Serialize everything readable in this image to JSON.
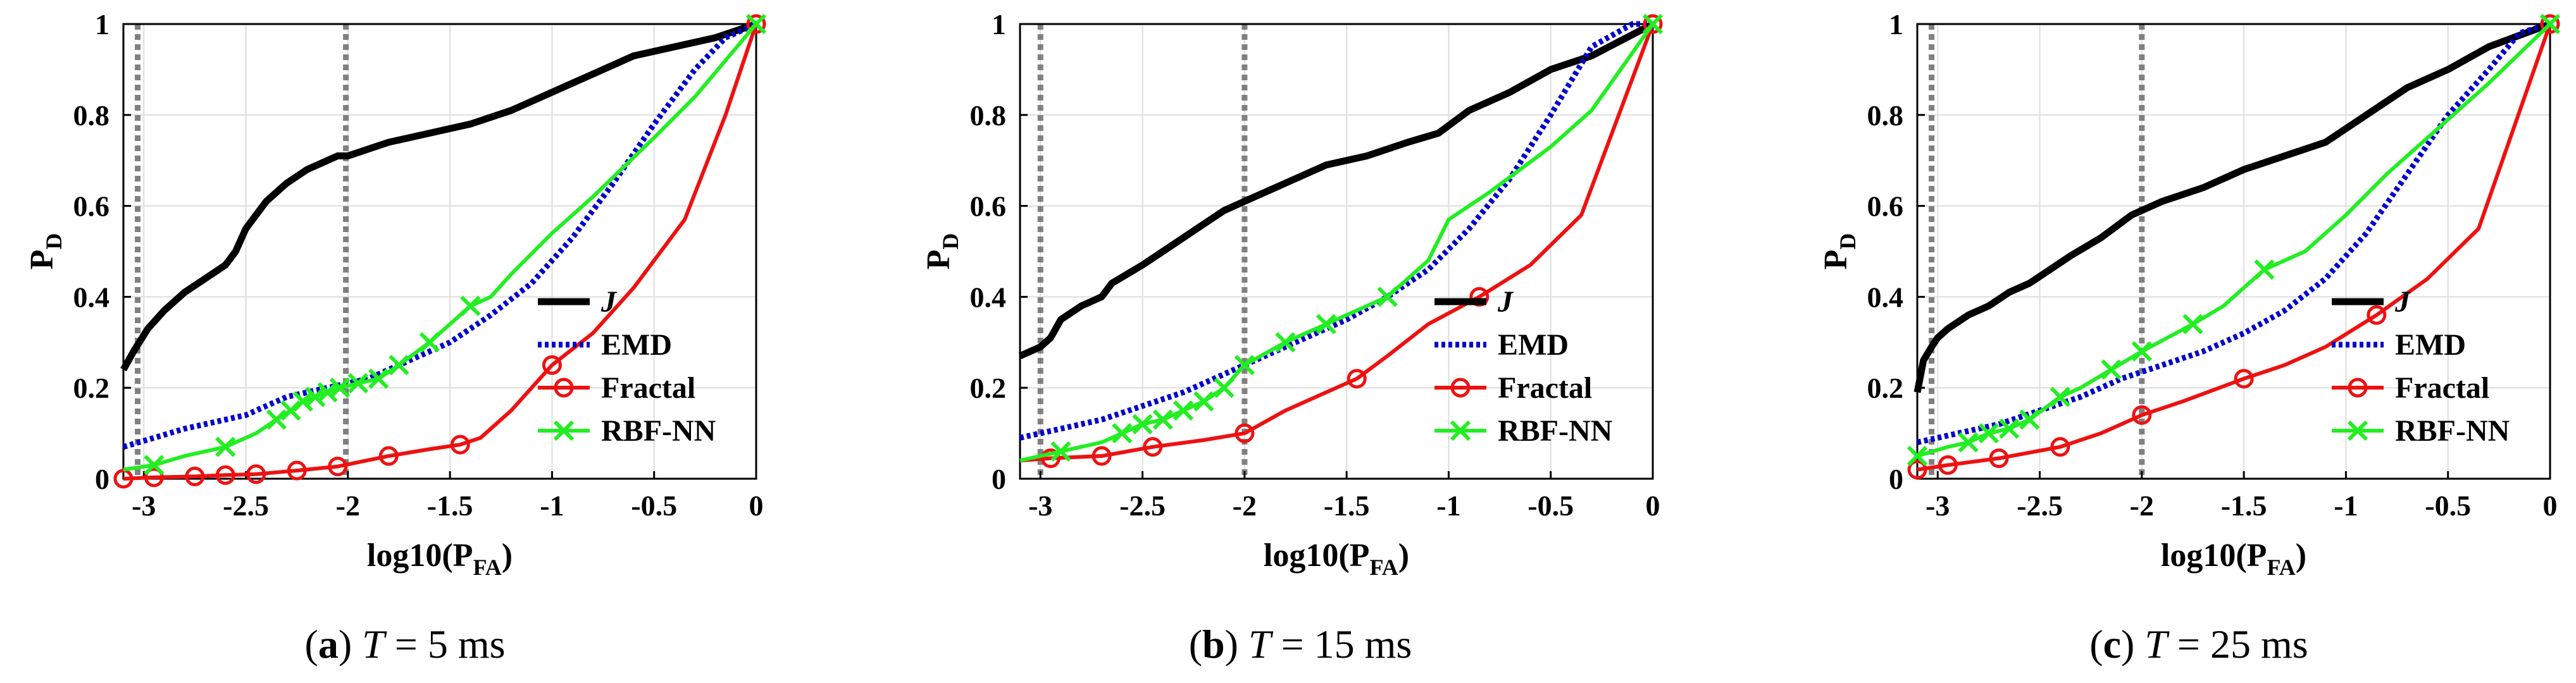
{
  "colors": {
    "J": "#000000",
    "EMD": "#0000cc",
    "Fractal": "#ee1111",
    "RBF-NN": "#22ee22",
    "grid": "#dddddd",
    "ref_lines": "#808080"
  },
  "chart_data": [
    {
      "type": "line",
      "caption": {
        "letter": "a",
        "var": "T",
        "rest": " = 5 ms"
      },
      "xlabel": "log10(P",
      "xlabel_sub": "FA",
      "xlabel_end": ")",
      "ylabel": "P",
      "ylabel_sub": "D",
      "xlim": [
        -3.1,
        0
      ],
      "ylim": [
        0,
        1
      ],
      "xticks": [
        -3,
        -2.5,
        -2,
        -1.5,
        -1,
        -0.5,
        0
      ],
      "xtick_labels": [
        "-3",
        "-2.5",
        "-2",
        "-1.5",
        "-1",
        "-0.5",
        "0"
      ],
      "yticks": [
        0,
        0.2,
        0.4,
        0.6,
        0.8,
        1
      ],
      "ytick_labels": [
        "0",
        "0.2",
        "0.4",
        "0.6",
        "0.8",
        "1"
      ],
      "vlines": [
        -3.03,
        -2.01
      ],
      "legend": {
        "location": "lower-right",
        "entries": [
          "J",
          "EMD",
          "Fractal",
          "RBF-NN"
        ]
      },
      "series": [
        {
          "name": "J",
          "style": "solid-thick",
          "marker": "none",
          "x": [
            -3.1,
            -3.05,
            -2.98,
            -2.9,
            -2.8,
            -2.7,
            -2.6,
            -2.55,
            -2.5,
            -2.45,
            -2.4,
            -2.3,
            -2.2,
            -2.1,
            -2.05,
            -2.0,
            -1.8,
            -1.6,
            -1.4,
            -1.2,
            -1.0,
            -0.8,
            -0.6,
            -0.4,
            -0.2,
            0
          ],
          "y": [
            0.24,
            0.28,
            0.33,
            0.37,
            0.41,
            0.44,
            0.47,
            0.5,
            0.55,
            0.58,
            0.61,
            0.65,
            0.68,
            0.7,
            0.71,
            0.71,
            0.74,
            0.76,
            0.78,
            0.81,
            0.85,
            0.89,
            0.93,
            0.95,
            0.97,
            1.0
          ]
        },
        {
          "name": "EMD",
          "style": "dotted",
          "marker": "none",
          "x": [
            -3.1,
            -2.8,
            -2.5,
            -2.3,
            -2.1,
            -1.9,
            -1.7,
            -1.5,
            -1.3,
            -1.1,
            -0.9,
            -0.7,
            -0.5,
            -0.3,
            -0.15,
            0
          ],
          "y": [
            0.07,
            0.11,
            0.14,
            0.18,
            0.2,
            0.22,
            0.26,
            0.3,
            0.36,
            0.43,
            0.53,
            0.65,
            0.78,
            0.9,
            0.97,
            1.0
          ]
        },
        {
          "name": "Fractal",
          "style": "solid",
          "marker": "circle",
          "x": [
            -3.1,
            -2.95,
            -2.75,
            -2.6,
            -2.45,
            -2.25,
            -2.05,
            -1.8,
            -1.6,
            -1.45,
            -1.35,
            -1.2,
            -1.0,
            -0.8,
            -0.6,
            -0.35,
            -0.15,
            0
          ],
          "y": [
            0.0,
            0.003,
            0.005,
            0.008,
            0.01,
            0.018,
            0.027,
            0.05,
            0.065,
            0.075,
            0.09,
            0.15,
            0.25,
            0.32,
            0.42,
            0.57,
            0.8,
            1.0
          ],
          "markers": [
            -3.1,
            -2.95,
            -2.75,
            -2.6,
            -2.45,
            -2.25,
            -2.05,
            -1.8,
            -1.45,
            -1.0,
            0
          ]
        },
        {
          "name": "RBF-NN",
          "style": "solid",
          "marker": "x",
          "x": [
            -3.1,
            -2.95,
            -2.8,
            -2.6,
            -2.45,
            -2.35,
            -2.28,
            -2.22,
            -2.16,
            -2.1,
            -2.04,
            -1.95,
            -1.85,
            -1.75,
            -1.6,
            -1.4,
            -1.3,
            -1.2,
            -1.0,
            -0.8,
            -0.5,
            -0.3,
            0
          ],
          "y": [
            0.02,
            0.03,
            0.05,
            0.07,
            0.1,
            0.13,
            0.15,
            0.17,
            0.18,
            0.19,
            0.2,
            0.21,
            0.22,
            0.25,
            0.3,
            0.38,
            0.4,
            0.45,
            0.54,
            0.62,
            0.75,
            0.84,
            1.0
          ],
          "markers": [
            -2.95,
            -2.6,
            -2.35,
            -2.28,
            -2.22,
            -2.16,
            -2.1,
            -2.04,
            -1.95,
            -1.85,
            -1.75,
            -1.6,
            -1.4,
            0
          ]
        }
      ]
    },
    {
      "type": "line",
      "caption": {
        "letter": "b",
        "var": "T",
        "rest": " = 15 ms"
      },
      "xlabel": "log10(P",
      "xlabel_sub": "FA",
      "xlabel_end": ")",
      "ylabel": "P",
      "ylabel_sub": "D",
      "xlim": [
        -3.1,
        0
      ],
      "ylim": [
        0,
        1
      ],
      "xticks": [
        -3,
        -2.5,
        -2,
        -1.5,
        -1,
        -0.5,
        0
      ],
      "xtick_labels": [
        "-3",
        "-2.5",
        "-2",
        "-1.5",
        "-1",
        "-0.5",
        "0"
      ],
      "yticks": [
        0,
        0.2,
        0.4,
        0.6,
        0.8,
        1
      ],
      "ytick_labels": [
        "0",
        "0.2",
        "0.4",
        "0.6",
        "0.8",
        "1"
      ],
      "vlines": [
        -3.0,
        -2.0
      ],
      "legend": {
        "location": "lower-right",
        "entries": [
          "J",
          "EMD",
          "Fractal",
          "RBF-NN"
        ]
      },
      "series": [
        {
          "name": "J",
          "style": "solid-thick",
          "marker": "none",
          "x": [
            -3.1,
            -3.0,
            -2.95,
            -2.9,
            -2.8,
            -2.7,
            -2.65,
            -2.5,
            -2.4,
            -2.3,
            -2.2,
            -2.1,
            -2.0,
            -1.8,
            -1.6,
            -1.4,
            -1.2,
            -1.05,
            -0.9,
            -0.7,
            -0.5,
            -0.3,
            0
          ],
          "y": [
            0.27,
            0.29,
            0.31,
            0.35,
            0.38,
            0.4,
            0.43,
            0.47,
            0.5,
            0.53,
            0.56,
            0.59,
            0.61,
            0.65,
            0.69,
            0.71,
            0.74,
            0.76,
            0.81,
            0.85,
            0.9,
            0.93,
            1.0
          ]
        },
        {
          "name": "EMD",
          "style": "dotted",
          "marker": "none",
          "x": [
            -3.1,
            -2.9,
            -2.7,
            -2.5,
            -2.3,
            -2.1,
            -1.9,
            -1.7,
            -1.5,
            -1.3,
            -1.1,
            -0.9,
            -0.7,
            -0.5,
            -0.3,
            -0.1,
            0
          ],
          "y": [
            0.09,
            0.11,
            0.13,
            0.16,
            0.19,
            0.23,
            0.27,
            0.31,
            0.35,
            0.4,
            0.46,
            0.55,
            0.66,
            0.8,
            0.95,
            1.0,
            1.0
          ]
        },
        {
          "name": "Fractal",
          "style": "solid",
          "marker": "circle",
          "x": [
            -3.1,
            -2.95,
            -2.7,
            -2.45,
            -2.2,
            -2.0,
            -1.8,
            -1.6,
            -1.45,
            -1.3,
            -1.1,
            -0.85,
            -0.6,
            -0.35,
            0
          ],
          "y": [
            0.04,
            0.045,
            0.05,
            0.07,
            0.085,
            0.1,
            0.15,
            0.19,
            0.22,
            0.27,
            0.34,
            0.4,
            0.47,
            0.58,
            1.0
          ],
          "markers": [
            -2.95,
            -2.7,
            -2.45,
            -2.0,
            -1.45,
            -0.85,
            0
          ]
        },
        {
          "name": "RBF-NN",
          "style": "solid",
          "marker": "x",
          "x": [
            -3.1,
            -2.9,
            -2.7,
            -2.6,
            -2.5,
            -2.4,
            -2.3,
            -2.2,
            -2.1,
            -2.0,
            -1.8,
            -1.6,
            -1.3,
            -1.1,
            -1.0,
            -0.8,
            -0.5,
            -0.3,
            0
          ],
          "y": [
            0.04,
            0.06,
            0.08,
            0.1,
            0.12,
            0.13,
            0.15,
            0.17,
            0.2,
            0.25,
            0.3,
            0.34,
            0.4,
            0.48,
            0.57,
            0.63,
            0.73,
            0.81,
            1.0
          ],
          "markers": [
            -2.9,
            -2.6,
            -2.5,
            -2.4,
            -2.3,
            -2.2,
            -2.1,
            -2.0,
            -1.8,
            -1.6,
            -1.3,
            0
          ]
        }
      ]
    },
    {
      "type": "line",
      "caption": {
        "letter": "c",
        "var": "T",
        "rest": " = 25 ms"
      },
      "xlabel": "log10(P",
      "xlabel_sub": "FA",
      "xlabel_end": ")",
      "ylabel": "P",
      "ylabel_sub": "D",
      "xlim": [
        -3.1,
        0
      ],
      "ylim": [
        0,
        1
      ],
      "xticks": [
        -3,
        -2.5,
        -2,
        -1.5,
        -1,
        -0.5,
        0
      ],
      "xtick_labels": [
        "-3",
        "-2.5",
        "-2",
        "-1.5",
        "-1",
        "-0.5",
        "0"
      ],
      "yticks": [
        0,
        0.2,
        0.4,
        0.6,
        0.8,
        1
      ],
      "ytick_labels": [
        "0",
        "0.2",
        "0.4",
        "0.6",
        "0.8",
        "1"
      ],
      "vlines": [
        -3.03,
        -2.0
      ],
      "legend": {
        "location": "lower-right",
        "entries": [
          "J",
          "EMD",
          "Fractal",
          "RBF-NN"
        ]
      },
      "series": [
        {
          "name": "J",
          "style": "solid-thick",
          "marker": "none",
          "x": [
            -3.1,
            -3.07,
            -3.03,
            -3.0,
            -2.95,
            -2.85,
            -2.75,
            -2.65,
            -2.55,
            -2.45,
            -2.35,
            -2.2,
            -2.05,
            -1.9,
            -1.7,
            -1.5,
            -1.3,
            -1.1,
            -0.9,
            -0.7,
            -0.5,
            -0.3,
            0
          ],
          "y": [
            0.19,
            0.26,
            0.29,
            0.31,
            0.33,
            0.36,
            0.38,
            0.41,
            0.43,
            0.46,
            0.49,
            0.53,
            0.58,
            0.61,
            0.64,
            0.68,
            0.71,
            0.74,
            0.8,
            0.86,
            0.9,
            0.95,
            1.0
          ]
        },
        {
          "name": "EMD",
          "style": "dotted",
          "marker": "none",
          "x": [
            -3.1,
            -2.9,
            -2.7,
            -2.5,
            -2.3,
            -2.1,
            -1.9,
            -1.7,
            -1.5,
            -1.3,
            -1.1,
            -0.9,
            -0.7,
            -0.5,
            -0.3,
            -0.15,
            0
          ],
          "y": [
            0.08,
            0.1,
            0.12,
            0.15,
            0.18,
            0.22,
            0.25,
            0.28,
            0.32,
            0.37,
            0.44,
            0.54,
            0.67,
            0.8,
            0.9,
            0.98,
            1.0
          ]
        },
        {
          "name": "Fractal",
          "style": "solid",
          "marker": "circle",
          "x": [
            -3.1,
            -2.95,
            -2.7,
            -2.4,
            -2.2,
            -2.0,
            -1.8,
            -1.5,
            -1.3,
            -1.1,
            -0.85,
            -0.6,
            -0.35,
            0
          ],
          "y": [
            0.02,
            0.03,
            0.045,
            0.07,
            0.1,
            0.14,
            0.17,
            0.22,
            0.25,
            0.29,
            0.36,
            0.44,
            0.55,
            1.0
          ],
          "markers": [
            -3.1,
            -2.95,
            -2.7,
            -2.4,
            -2.0,
            -1.5,
            -0.85,
            0
          ]
        },
        {
          "name": "RBF-NN",
          "style": "solid",
          "marker": "x",
          "x": [
            -3.1,
            -2.95,
            -2.85,
            -2.75,
            -2.65,
            -2.55,
            -2.4,
            -2.3,
            -2.15,
            -2.0,
            -1.75,
            -1.6,
            -1.4,
            -1.2,
            -1.0,
            -0.8,
            -0.5,
            -0.3,
            0
          ],
          "y": [
            0.05,
            0.07,
            0.08,
            0.1,
            0.11,
            0.13,
            0.18,
            0.2,
            0.24,
            0.28,
            0.34,
            0.38,
            0.46,
            0.5,
            0.58,
            0.67,
            0.79,
            0.87,
            1.0
          ],
          "markers": [
            -3.1,
            -2.85,
            -2.75,
            -2.65,
            -2.55,
            -2.4,
            -2.15,
            -2.0,
            -1.75,
            -1.4,
            0
          ]
        }
      ]
    }
  ]
}
